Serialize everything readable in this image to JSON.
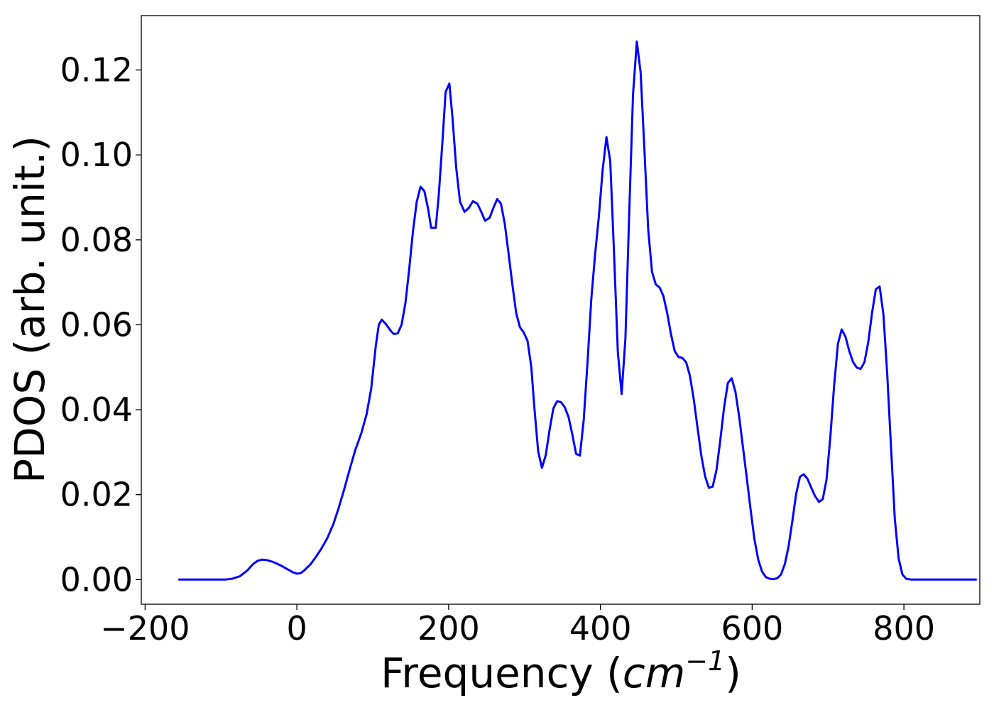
{
  "chart_data": {
    "type": "line",
    "title": "",
    "xlabel_text": "Frequency (",
    "xlabel_unit": "cm",
    "xlabel_unit_exp": "−1",
    "xlabel_close": ")",
    "ylabel": "PDOS (arb. unit.)",
    "xlim": [
      -205,
      900
    ],
    "ylim": [
      -0.0058,
      0.1328
    ],
    "xticks": [
      -200,
      0,
      200,
      400,
      600,
      800
    ],
    "xtick_labels": [
      "−200",
      "0",
      "200",
      "400",
      "600",
      "800"
    ],
    "yticks": [
      0.0,
      0.02,
      0.04,
      0.06,
      0.08,
      0.1,
      0.12
    ],
    "ytick_labels": [
      "0.00",
      "0.02",
      "0.04",
      "0.06",
      "0.08",
      "0.10",
      "0.12"
    ],
    "grid": false,
    "legend": "none",
    "series": [
      {
        "color": "#0000ff",
        "points": [
          [
            -155,
            0.0
          ],
          [
            -130,
            0.0
          ],
          [
            -110,
            0.0
          ],
          [
            -95,
            0.0
          ],
          [
            -85,
            0.0002
          ],
          [
            -75,
            0.0008
          ],
          [
            -65,
            0.0022
          ],
          [
            -58,
            0.0036
          ],
          [
            -52,
            0.0044
          ],
          [
            -46,
            0.0047
          ],
          [
            -40,
            0.0046
          ],
          [
            -32,
            0.0042
          ],
          [
            -22,
            0.0034
          ],
          [
            -12,
            0.0024
          ],
          [
            -5,
            0.0017
          ],
          [
            0,
            0.0014
          ],
          [
            5,
            0.0015
          ],
          [
            10,
            0.0022
          ],
          [
            18,
            0.0036
          ],
          [
            25,
            0.0053
          ],
          [
            32,
            0.0072
          ],
          [
            40,
            0.0097
          ],
          [
            48,
            0.013
          ],
          [
            55,
            0.0168
          ],
          [
            62,
            0.021
          ],
          [
            70,
            0.0262
          ],
          [
            77,
            0.0305
          ],
          [
            85,
            0.0345
          ],
          [
            92,
            0.039
          ],
          [
            98,
            0.045
          ],
          [
            104,
            0.055
          ],
          [
            108,
            0.06
          ],
          [
            112,
            0.0612
          ],
          [
            118,
            0.06
          ],
          [
            124,
            0.0585
          ],
          [
            128,
            0.0578
          ],
          [
            133,
            0.058
          ],
          [
            138,
            0.06
          ],
          [
            143,
            0.065
          ],
          [
            148,
            0.073
          ],
          [
            153,
            0.082
          ],
          [
            158,
            0.089
          ],
          [
            163,
            0.0925
          ],
          [
            168,
            0.0915
          ],
          [
            173,
            0.0873
          ],
          [
            177,
            0.0828
          ],
          [
            183,
            0.0828
          ],
          [
            187,
            0.0905
          ],
          [
            192,
            0.1035
          ],
          [
            196,
            0.1148
          ],
          [
            201,
            0.1168
          ],
          [
            205,
            0.109
          ],
          [
            210,
            0.097
          ],
          [
            215,
            0.089
          ],
          [
            221,
            0.0866
          ],
          [
            227,
            0.0876
          ],
          [
            232,
            0.0891
          ],
          [
            238,
            0.0885
          ],
          [
            243,
            0.0866
          ],
          [
            248,
            0.0845
          ],
          [
            254,
            0.0852
          ],
          [
            259,
            0.0875
          ],
          [
            264,
            0.0896
          ],
          [
            269,
            0.0885
          ],
          [
            274,
            0.0838
          ],
          [
            279,
            0.0768
          ],
          [
            284,
            0.0695
          ],
          [
            289,
            0.0628
          ],
          [
            294,
            0.0594
          ],
          [
            299,
            0.0582
          ],
          [
            304,
            0.0562
          ],
          [
            309,
            0.05
          ],
          [
            313,
            0.0405
          ],
          [
            318,
            0.0302
          ],
          [
            323,
            0.0263
          ],
          [
            328,
            0.0293
          ],
          [
            333,
            0.0352
          ],
          [
            338,
            0.0403
          ],
          [
            343,
            0.042
          ],
          [
            348,
            0.0418
          ],
          [
            353,
            0.0406
          ],
          [
            358,
            0.0383
          ],
          [
            363,
            0.0342
          ],
          [
            368,
            0.0296
          ],
          [
            373,
            0.0292
          ],
          [
            378,
            0.0375
          ],
          [
            383,
            0.051
          ],
          [
            388,
            0.066
          ],
          [
            393,
            0.0765
          ],
          [
            398,
            0.0855
          ],
          [
            403,
            0.0965
          ],
          [
            408,
            0.1042
          ],
          [
            413,
            0.0985
          ],
          [
            418,
            0.0768
          ],
          [
            423,
            0.0536
          ],
          [
            428,
            0.0437
          ],
          [
            433,
            0.0568
          ],
          [
            438,
            0.0862
          ],
          [
            443,
            0.1142
          ],
          [
            448,
            0.1267
          ],
          [
            453,
            0.1195
          ],
          [
            458,
            0.1013
          ],
          [
            463,
            0.0825
          ],
          [
            468,
            0.0725
          ],
          [
            473,
            0.0695
          ],
          [
            478,
            0.0688
          ],
          [
            483,
            0.0668
          ],
          [
            488,
            0.0628
          ],
          [
            493,
            0.0578
          ],
          [
            498,
            0.0538
          ],
          [
            503,
            0.0524
          ],
          [
            508,
            0.0522
          ],
          [
            513,
            0.0512
          ],
          [
            518,
            0.048
          ],
          [
            523,
            0.0425
          ],
          [
            528,
            0.0358
          ],
          [
            533,
            0.0292
          ],
          [
            538,
            0.0243
          ],
          [
            543,
            0.0216
          ],
          [
            548,
            0.0219
          ],
          [
            553,
            0.0258
          ],
          [
            558,
            0.0328
          ],
          [
            563,
            0.0405
          ],
          [
            568,
            0.0463
          ],
          [
            573,
            0.0474
          ],
          [
            578,
            0.0442
          ],
          [
            583,
            0.0382
          ],
          [
            588,
            0.031
          ],
          [
            593,
            0.0238
          ],
          [
            598,
            0.0164
          ],
          [
            603,
            0.0095
          ],
          [
            608,
            0.0047
          ],
          [
            613,
            0.0019
          ],
          [
            618,
            0.0006
          ],
          [
            623,
            0.0002
          ],
          [
            628,
            0.0001
          ],
          [
            633,
            0.0003
          ],
          [
            638,
            0.0012
          ],
          [
            643,
            0.0036
          ],
          [
            648,
            0.0078
          ],
          [
            653,
            0.0138
          ],
          [
            658,
            0.0202
          ],
          [
            663,
            0.0242
          ],
          [
            668,
            0.0248
          ],
          [
            673,
            0.0237
          ],
          [
            678,
            0.0216
          ],
          [
            683,
            0.0196
          ],
          [
            688,
            0.0183
          ],
          [
            693,
            0.0189
          ],
          [
            698,
            0.0235
          ],
          [
            703,
            0.0335
          ],
          [
            708,
            0.0456
          ],
          [
            713,
            0.0555
          ],
          [
            718,
            0.0589
          ],
          [
            723,
            0.0572
          ],
          [
            728,
            0.0538
          ],
          [
            733,
            0.0512
          ],
          [
            738,
            0.0499
          ],
          [
            743,
            0.0496
          ],
          [
            748,
            0.0512
          ],
          [
            753,
            0.0559
          ],
          [
            758,
            0.0628
          ],
          [
            763,
            0.0684
          ],
          [
            768,
            0.069
          ],
          [
            773,
            0.0624
          ],
          [
            778,
            0.0484
          ],
          [
            783,
            0.0312
          ],
          [
            788,
            0.0143
          ],
          [
            793,
            0.005
          ],
          [
            798,
            0.0012
          ],
          [
            803,
            0.0002
          ],
          [
            810,
            0.0
          ],
          [
            830,
            0.0
          ],
          [
            850,
            0.0
          ],
          [
            870,
            0.0
          ],
          [
            895,
            0.0
          ]
        ]
      }
    ]
  }
}
